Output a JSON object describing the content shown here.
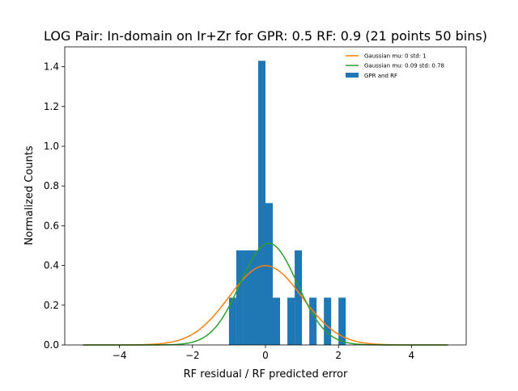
{
  "chart_data": {
    "type": "bar",
    "title": "LOG Pair: In-domain on Ir+Zr for GPR: 0.5 RF: 0.9 (21 points 50 bins)",
    "xlabel": "RF residual / RF predicted error",
    "ylabel": "Normalized Counts",
    "xlim": [
      -5.5,
      5.5
    ],
    "ylim": [
      0,
      1.5
    ],
    "xticks": [
      -4,
      -2,
      0,
      2,
      4
    ],
    "yticks": [
      0.0,
      0.2,
      0.4,
      0.6,
      0.8,
      1.0,
      1.2,
      1.4
    ],
    "xtick_labels": [
      "−4",
      "−2",
      "0",
      "2",
      "4"
    ],
    "ytick_labels": [
      "0.0",
      "0.2",
      "0.4",
      "0.6",
      "0.8",
      "1.0",
      "1.2",
      "1.4"
    ],
    "histogram": {
      "name": "GPR and RF",
      "color": "#1f77b4",
      "bin_width": 0.2,
      "bars": [
        {
          "x0": -1.0,
          "value": 0.238
        },
        {
          "x0": -0.8,
          "value": 0.476
        },
        {
          "x0": -0.6,
          "value": 0.476
        },
        {
          "x0": -0.4,
          "value": 0.476
        },
        {
          "x0": -0.2,
          "value": 1.43
        },
        {
          "x0": 0.0,
          "value": 0.714
        },
        {
          "x0": 0.2,
          "value": 0.238
        },
        {
          "x0": 0.4,
          "value": 0.0
        },
        {
          "x0": 0.6,
          "value": 0.238
        },
        {
          "x0": 0.8,
          "value": 0.476
        },
        {
          "x0": 1.2,
          "value": 0.238
        },
        {
          "x0": 1.6,
          "value": 0.238
        },
        {
          "x0": 2.0,
          "value": 0.238
        }
      ]
    },
    "curves": [
      {
        "name": "Gaussian mu: 0 std: 1",
        "mu": 0,
        "std": 1,
        "color": "#ff7f0e"
      },
      {
        "name": "Gaussian mu: 0.09 std: 0.78",
        "mu": 0.09,
        "std": 0.78,
        "color": "#2ca02c"
      }
    ],
    "curve_range": [
      -5,
      5
    ],
    "legend_position": "top-right",
    "grid": false
  }
}
